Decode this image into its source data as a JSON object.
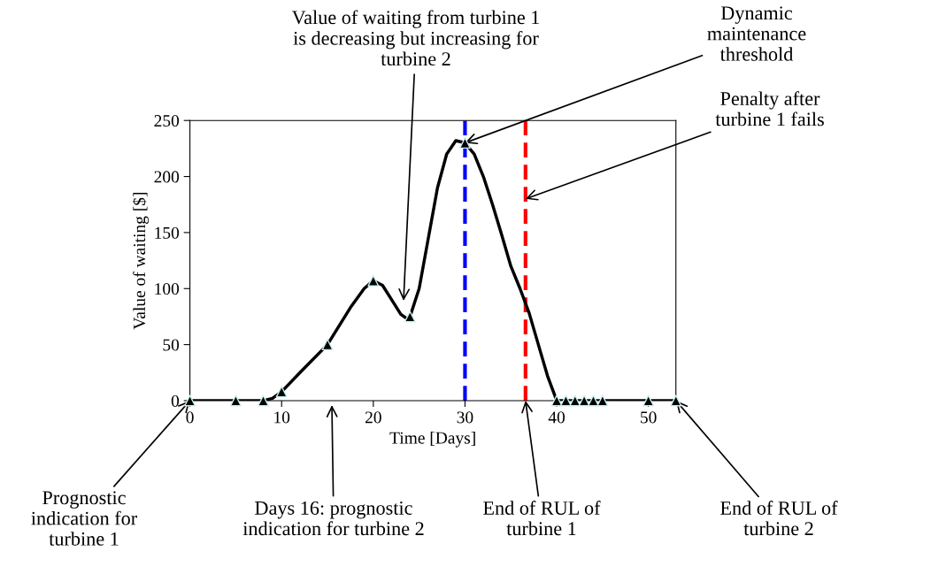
{
  "chart_data": {
    "type": "line",
    "xlabel": "Time [Days]",
    "ylabel": "Value of waiting [$]",
    "series": [
      {
        "color": "#000000",
        "x": [
          0,
          5,
          8,
          9,
          10,
          12,
          15,
          17.5,
          19,
          20,
          21,
          22,
          23,
          23.7,
          24,
          25,
          26,
          27,
          28,
          29,
          30,
          31,
          32,
          33,
          34,
          35,
          36,
          37,
          38,
          39,
          40,
          53
        ],
        "values": [
          0,
          0,
          0,
          2,
          8,
          25,
          50,
          83,
          100,
          107,
          103,
          90,
          77,
          73,
          75,
          100,
          145,
          190,
          220,
          232,
          230,
          220,
          200,
          175,
          148,
          120,
          100,
          78,
          50,
          22,
          0,
          0
        ]
      },
      {
        "type": "scatter",
        "marker": "triangle",
        "color": "#000000",
        "x": [
          0,
          5,
          8,
          10,
          15,
          20,
          24,
          30,
          40,
          41,
          42,
          43,
          44,
          45,
          50,
          53
        ],
        "values": [
          0,
          0,
          0,
          8,
          50,
          107,
          75,
          230,
          0,
          0,
          0,
          0,
          0,
          0,
          0,
          0
        ]
      }
    ],
    "xlim": [
      0,
      53
    ],
    "ylim": [
      0,
      250
    ],
    "xticks": [
      0,
      10,
      20,
      30,
      40,
      50
    ],
    "yticks": [
      0,
      50,
      100,
      150,
      200,
      250
    ],
    "marker": "none",
    "grid": false,
    "legend": false,
    "ref_lines": [
      {
        "axis": "x",
        "value": 30,
        "color": "#0000ff",
        "line_style": "dashed"
      },
      {
        "axis": "x",
        "value": 36.6,
        "color": "#ff0000",
        "line_style": "dashed"
      }
    ],
    "annotations": [
      "Value of waiting from turbine 1\nis decreasing but increasing for\nturbine 2",
      {
        "text": "Dynamic\nmaintenance\nthreshold",
        "x": 30,
        "y": 230
      },
      {
        "text": "Penalty after\nturbine 1 fails",
        "x": 36.6,
        "y": 180
      },
      {
        "text": "Prognostic\nindication for\nturbine 1",
        "x": 0,
        "y": 0
      },
      "Days 16: prognostic\nindication for turbine 2",
      {
        "text": "End of RUL of\nturbine 1",
        "x": 36.6,
        "y": 0
      },
      {
        "text": "End of RUL of\nturbine 2",
        "x": 53,
        "y": 0
      }
    ]
  }
}
